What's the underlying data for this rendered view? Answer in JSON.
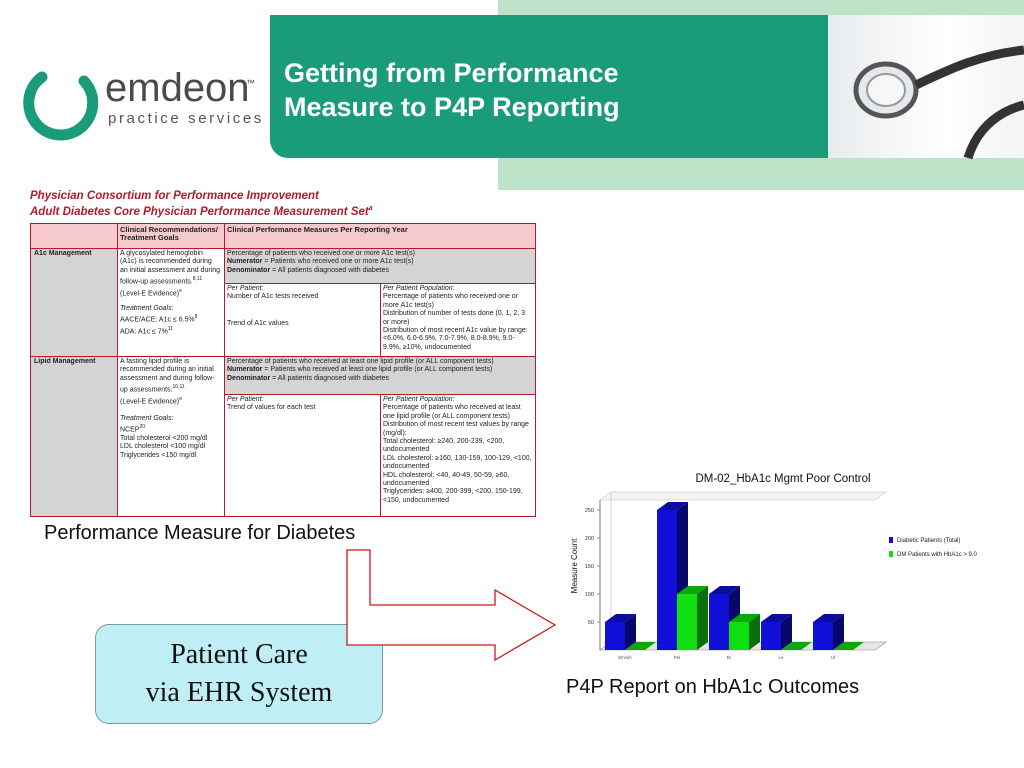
{
  "logo": {
    "word": "emdeon",
    "tm": "™",
    "sub": "practice services"
  },
  "header": {
    "title_line1": "Getting from Performance",
    "title_line2": "Measure to P4P Reporting"
  },
  "table": {
    "heading1": "Physician Consortium for Performance Improvement",
    "heading2": "Adult Diabetes Core Physician Performance Measurement Set",
    "heading2_sup": "a",
    "col1_header": "Clinical Recommendations/ Treatment Goals",
    "col2_header": "Clinical Performance Measures Per Reporting Year",
    "a1c": {
      "label": "A1c Management",
      "rec": "A glycosylated hemoglobin (A1c) is recommended during an initial assessment and during follow-up assessments.",
      "rec_sup": "8,11",
      "evidence": "(Level-E Evidence)",
      "evidence_sup": "e",
      "goals_title": "Treatment Goals:",
      "goal1": "AACE/ACE: A1c ≤ 6.5%",
      "goal1_sup": "8",
      "goal2": "ADA: A1c ≤ 7%",
      "goal2_sup": "11",
      "measure": "Percentage of patients who received one or more A1c test(s)",
      "numerator_label": "Numerator",
      "numerator": " = Patients who received one or more A1c test(s)",
      "denominator_label": "Denominator",
      "denominator": " = All patients diagnosed with diabetes",
      "pp_title": "Per Patient:",
      "pp1": "Number of A1c tests received",
      "pp2": "Trend of A1c values",
      "ppp_title": "Per Patient Population:",
      "ppp1": "Percentage of patients who received one or more A1c test(s)",
      "ppp2": "Distribution of number of tests done (0, 1, 2, 3 or more)",
      "ppp3": "Distribution of most recent A1c value by range: <6.0%, 6.0-6.9%, 7.0-7.9%, 8.0-8.9%, 9.0-9.9%, ≥10%, undocumented"
    },
    "lipid": {
      "label": "Lipid Management",
      "rec": "A fasting lipid profile is recommended during an initial assessment and during follow-up assessments.",
      "rec_sup": "10,11",
      "evidence": "(Level-E Evidence)",
      "evidence_sup": "e",
      "goals_title": "Treatment Goals:",
      "goal0": "NCEP",
      "goal0_sup": "20",
      "goal1": "Total cholesterol <200 mg/dl",
      "goal2": "LDL cholesterol <100 mg/dl",
      "goal3": "Triglycerides <150 mg/dl",
      "measure": "Percentage of patients who received at least one lipid profile (or ALL component tests)",
      "numerator_label": "Numerator",
      "numerator": " = Patients who received at least one lipid profile (or ALL component tests)",
      "denominator_label": "Denominator",
      "denominator": " = All patients diagnosed with diabetes",
      "pp_title": "Per Patient:",
      "pp1": "Trend of values for each test",
      "ppp_title": "Per Patient Population:",
      "ppp1": "Percentage of patients who received at least one lipid profile (or ALL component tests)",
      "ppp2": "Distribution of most recent test values by range (mg/dl):",
      "ppp3": "Total cholesterol: ≥240, 200-239, <200, undocumented",
      "ppp4": "LDL cholesterol: ≥160, 130-159, 100-129, <100, undocumented",
      "ppp5": "HDL cholesterol: <40, 40-49, 50-59, ≥60, undocumented",
      "ppp6": "Triglycerides: ≥400, 200-399, <200, 150-199, <150, undocumented"
    }
  },
  "captions": {
    "performance": "Performance Measure for Diabetes",
    "p4p": "P4P Report on HbA1c Outcomes"
  },
  "care_box": {
    "line1": "Patient Care",
    "line2": "via EHR System"
  },
  "chart_data": {
    "type": "bar",
    "title": "DM-02_HbA1c Mgmt Poor Control",
    "ylabel": "Measure Count",
    "xlabel": "",
    "ylim": [
      0,
      250
    ],
    "yticks": [
      50,
      100,
      150,
      200,
      250
    ],
    "categories": [
      "Elmwh",
      "Pel",
      "Br",
      "Le",
      "Uf"
    ],
    "series": [
      {
        "name": "Diabetic Patients (Total)",
        "values": [
          50,
          250,
          100,
          50,
          50
        ],
        "color": "#1010d8"
      },
      {
        "name": "DM Patients with HbA1c > 9.0",
        "values": [
          0,
          100,
          50,
          0,
          0
        ],
        "color": "#10e010"
      }
    ],
    "legend": "right",
    "grid": false
  },
  "colors": {
    "banner": "#1a9b7a",
    "banner_light": "#bfe3c8",
    "table_accent": "#b01b2e",
    "care_box": "#bfeff5"
  }
}
